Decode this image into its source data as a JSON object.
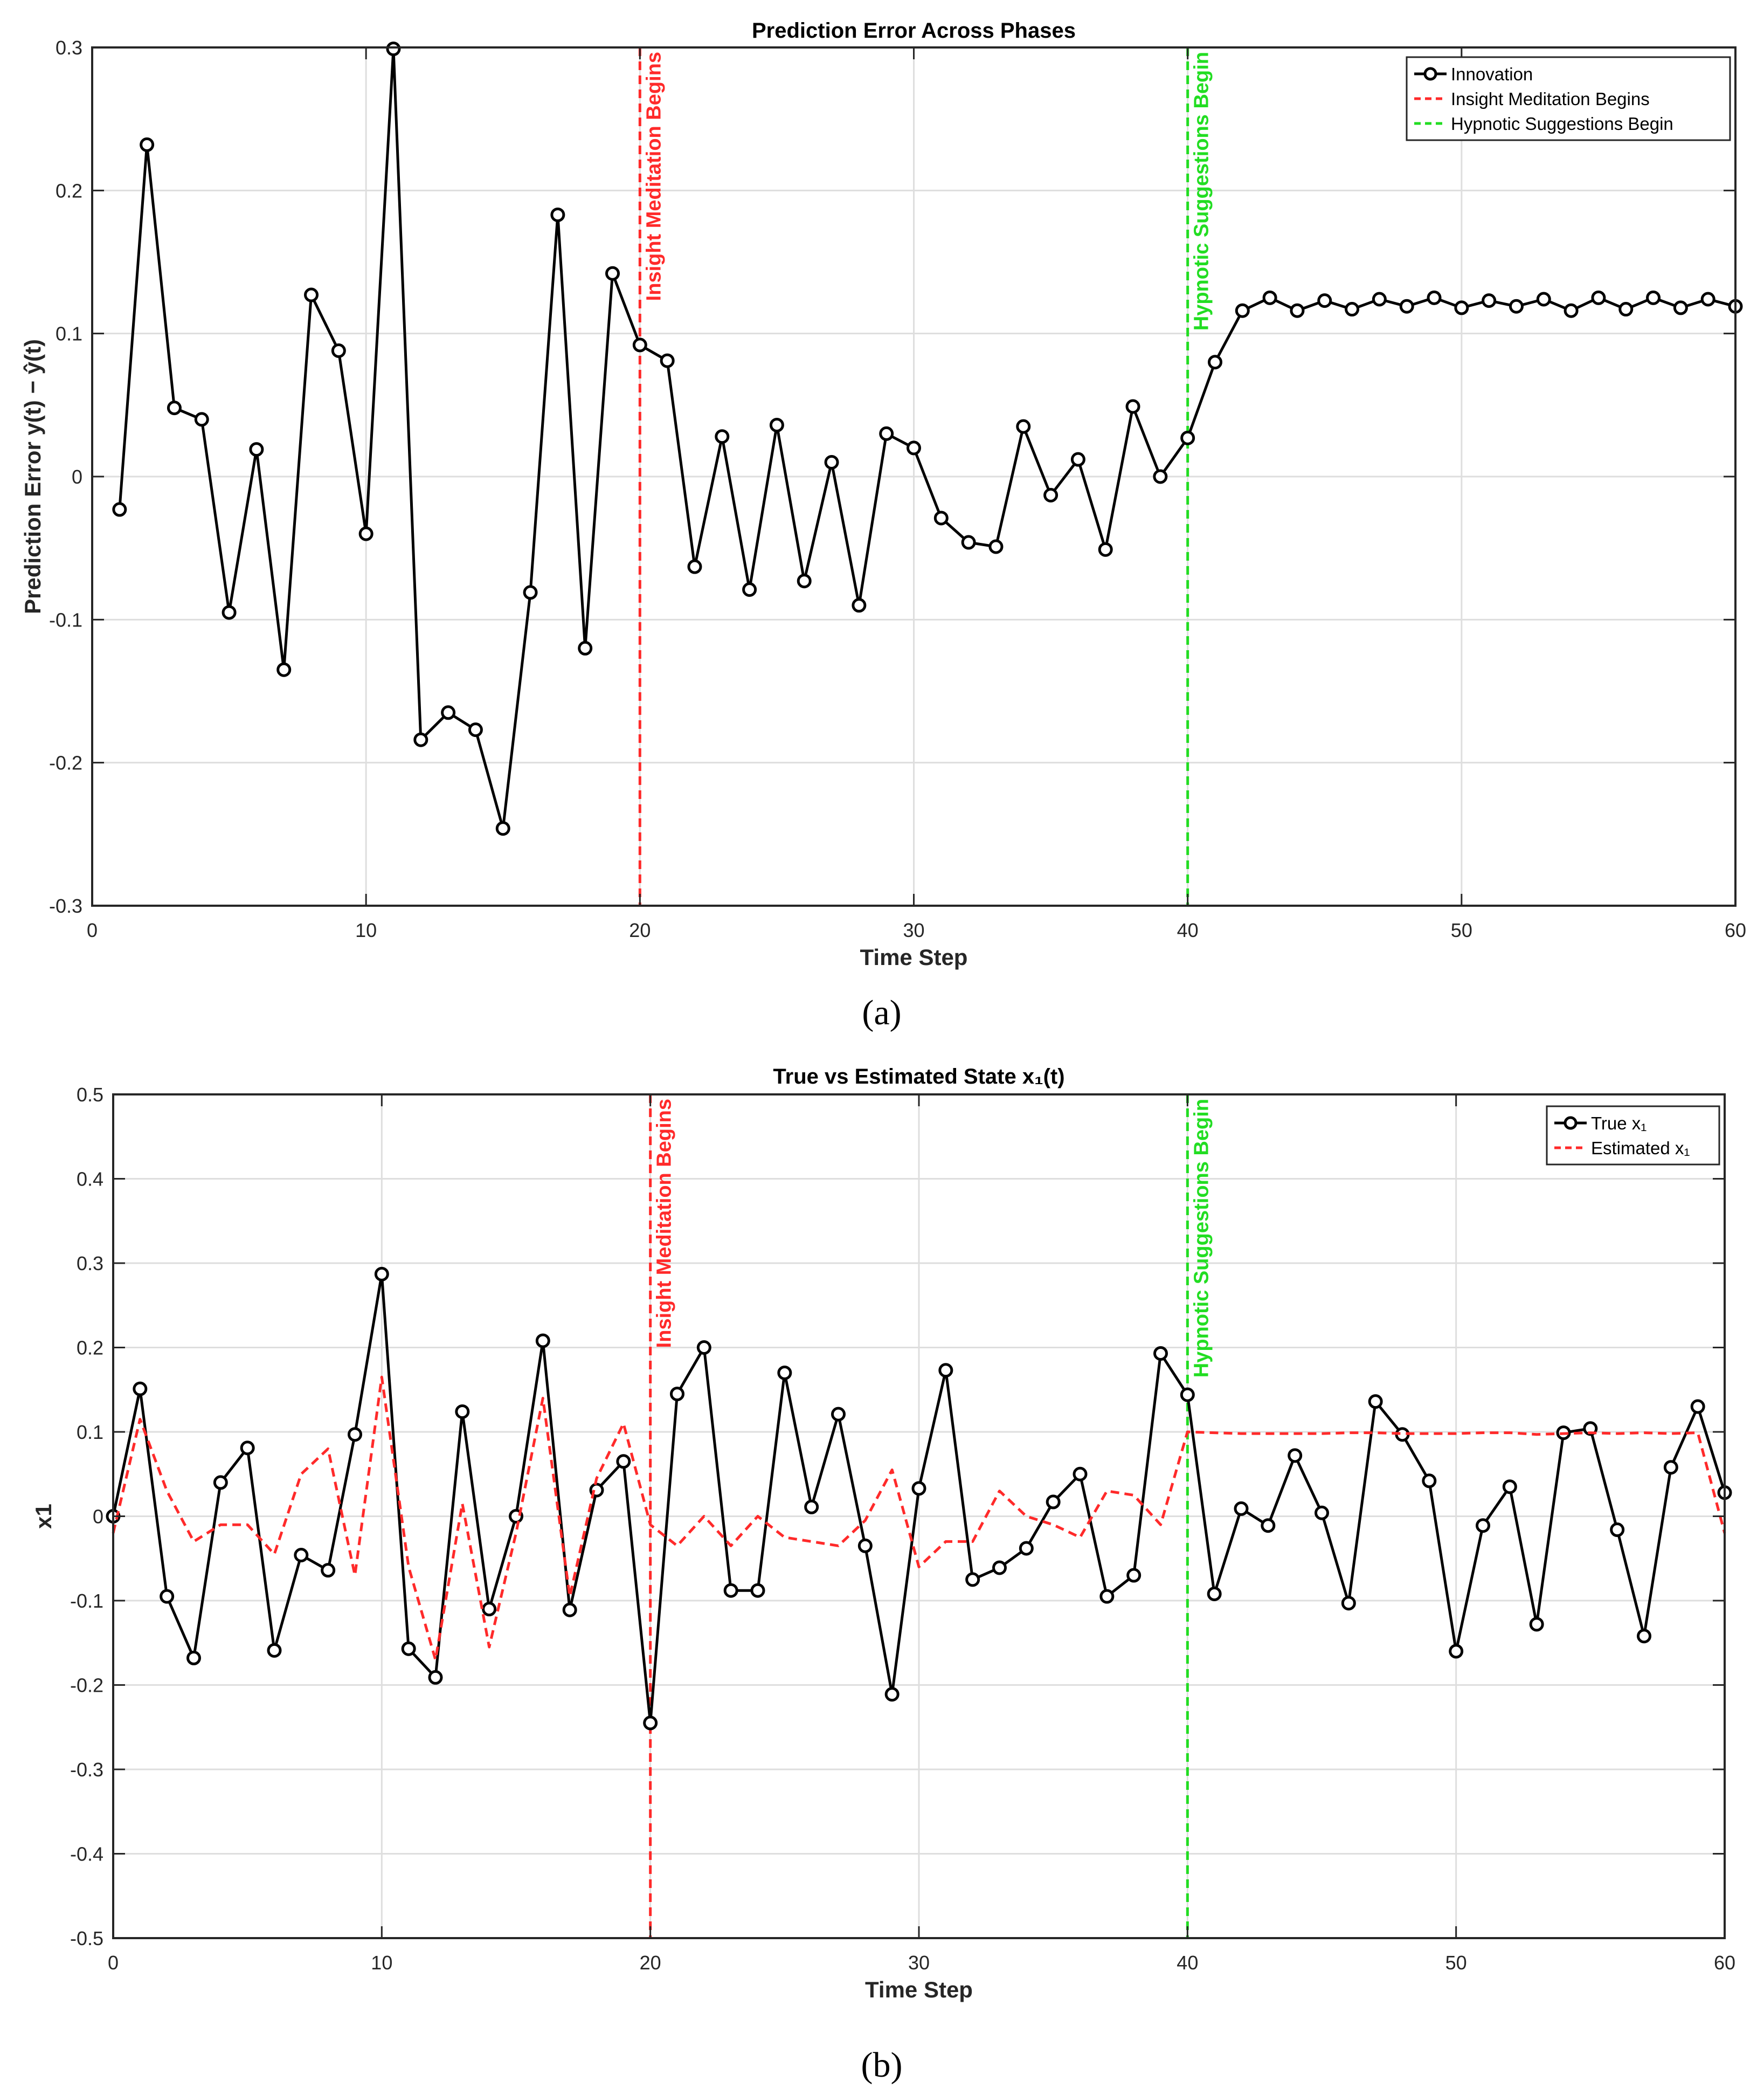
{
  "figure": {
    "caption_a": "(a)",
    "caption_b": "(b)"
  },
  "chart_data": [
    {
      "type": "line",
      "title": "Prediction Error Across Phases",
      "xlabel": "Time Step",
      "ylabel": "Prediction Error y(t) − ŷ(t)",
      "xlim": [
        0,
        60
      ],
      "ylim": [
        -0.3,
        0.3
      ],
      "xticks": [
        0,
        10,
        20,
        30,
        40,
        50,
        60
      ],
      "yticks": [
        -0.3,
        -0.2,
        -0.1,
        0,
        0.1,
        0.2,
        0.3
      ],
      "xtick_labels": [
        "0",
        "10",
        "20",
        "30",
        "40",
        "50",
        "60"
      ],
      "ytick_labels": [
        "-0.3",
        "-0.2",
        "-0.1",
        "0",
        "0.1",
        "0.2",
        "0.3"
      ],
      "grid": true,
      "legend_position": "top-right",
      "colors": {
        "innovation": "#000000",
        "insight": "#ff2a2a",
        "hypnotic": "#22dd22"
      },
      "series": [
        {
          "name": "Innovation",
          "style": "line-marker",
          "x": [
            1,
            2,
            3,
            4,
            5,
            6,
            7,
            8,
            9,
            10,
            11,
            12,
            13,
            14,
            15,
            16,
            17,
            18,
            19,
            20,
            21,
            22,
            23,
            24,
            25,
            26,
            27,
            28,
            29,
            30,
            31,
            32,
            33,
            34,
            35,
            36,
            37,
            38,
            39,
            40,
            41,
            42,
            43,
            44,
            45,
            46,
            47,
            48,
            49,
            50,
            51,
            52,
            53,
            54,
            55,
            56,
            57,
            58,
            59,
            60
          ],
          "values": [
            -0.023,
            0.232,
            0.048,
            0.04,
            -0.095,
            0.019,
            -0.135,
            0.127,
            0.088,
            -0.04,
            0.299,
            -0.184,
            -0.165,
            -0.177,
            -0.246,
            -0.081,
            0.183,
            -0.12,
            0.142,
            0.092,
            0.081,
            -0.063,
            0.028,
            -0.079,
            0.036,
            -0.073,
            0.01,
            -0.09,
            0.03,
            0.02,
            -0.029,
            -0.046,
            -0.049,
            0.035,
            -0.013,
            0.012,
            -0.051,
            0.049,
            0.0,
            0.027,
            0.08,
            0.116,
            0.125,
            0.116,
            0.123,
            0.117,
            0.124,
            0.119,
            0.125,
            0.118,
            0.123,
            0.119,
            0.124,
            0.116,
            0.125,
            0.117,
            0.125,
            0.118,
            0.124,
            0.119
          ]
        }
      ],
      "vlines": [
        {
          "name": "Insight Meditation Begins",
          "x": 20,
          "label": "Insight Meditation Begins",
          "color": "#ff2a2a"
        },
        {
          "name": "Hypnotic Suggestions Begin",
          "x": 40,
          "label": "Hypnotic Suggestions Begin",
          "color": "#22dd22"
        }
      ],
      "legend": [
        "Innovation",
        "Insight Meditation Begins",
        "Hypnotic Suggestions Begin"
      ]
    },
    {
      "type": "line",
      "title": "True vs Estimated State x₁(t)",
      "xlabel": "Time Step",
      "ylabel": "x1",
      "xlim": [
        0,
        60
      ],
      "ylim": [
        -0.5,
        0.5
      ],
      "xticks": [
        0,
        10,
        20,
        30,
        40,
        50,
        60
      ],
      "yticks": [
        -0.5,
        -0.4,
        -0.3,
        -0.2,
        -0.1,
        0,
        0.1,
        0.2,
        0.3,
        0.4,
        0.5
      ],
      "xtick_labels": [
        "0",
        "10",
        "20",
        "30",
        "40",
        "50",
        "60"
      ],
      "ytick_labels": [
        "-0.5",
        "-0.4",
        "-0.3",
        "-0.2",
        "-0.1",
        "0",
        "0.1",
        "0.2",
        "0.3",
        "0.4",
        "0.5"
      ],
      "grid": true,
      "legend_position": "top-right",
      "colors": {
        "true": "#000000",
        "estimated": "#ff2a2a",
        "insight": "#ff2a2a",
        "hypnotic": "#22dd22"
      },
      "series": [
        {
          "name": "True x₁",
          "style": "line-marker",
          "x": [
            0,
            1,
            2,
            3,
            4,
            5,
            6,
            7,
            8,
            9,
            10,
            11,
            12,
            13,
            14,
            15,
            16,
            17,
            18,
            19,
            20,
            21,
            22,
            23,
            24,
            25,
            26,
            27,
            28,
            29,
            30,
            31,
            32,
            33,
            34,
            35,
            36,
            37,
            38,
            39,
            40,
            41,
            42,
            43,
            44,
            45,
            46,
            47,
            48,
            49,
            50,
            51,
            52,
            53,
            54,
            55,
            56,
            57,
            58,
            59,
            60
          ],
          "values": [
            0.0,
            0.151,
            -0.095,
            -0.168,
            0.04,
            0.081,
            -0.159,
            -0.046,
            -0.064,
            0.097,
            0.287,
            -0.157,
            -0.191,
            0.124,
            -0.11,
            0.0,
            0.208,
            -0.111,
            0.031,
            0.065,
            -0.245,
            0.145,
            0.2,
            -0.088,
            -0.088,
            0.17,
            0.011,
            0.121,
            -0.035,
            -0.211,
            0.033,
            0.173,
            -0.075,
            -0.061,
            -0.038,
            0.017,
            0.05,
            -0.095,
            -0.07,
            0.193,
            0.144,
            -0.092,
            0.009,
            -0.011,
            0.072,
            0.004,
            -0.103,
            0.136,
            0.097,
            0.042,
            -0.16,
            -0.011,
            0.035,
            -0.128,
            0.099,
            0.104,
            -0.016,
            -0.142,
            0.058,
            0.13,
            0.028
          ]
        },
        {
          "name": "Estimated x₁",
          "style": "dashed",
          "x": [
            0,
            1,
            2,
            3,
            4,
            5,
            6,
            7,
            8,
            9,
            10,
            11,
            12,
            13,
            14,
            15,
            16,
            17,
            18,
            19,
            20,
            21,
            22,
            23,
            24,
            25,
            26,
            27,
            28,
            29,
            30,
            31,
            32,
            33,
            34,
            35,
            36,
            37,
            38,
            39,
            40,
            41,
            42,
            43,
            44,
            45,
            46,
            47,
            48,
            49,
            50,
            51,
            52,
            53,
            54,
            55,
            56,
            57,
            58,
            59,
            60
          ],
          "values": [
            -0.02,
            0.115,
            0.03,
            -0.03,
            -0.01,
            -0.01,
            -0.045,
            0.05,
            0.08,
            -0.07,
            0.165,
            -0.06,
            -0.17,
            0.015,
            -0.155,
            -0.02,
            0.14,
            -0.095,
            0.045,
            0.11,
            -0.01,
            -0.035,
            0.0,
            -0.035,
            0.0,
            -0.025,
            -0.03,
            -0.035,
            -0.005,
            0.055,
            -0.06,
            -0.03,
            -0.03,
            0.03,
            0.0,
            -0.01,
            -0.025,
            0.03,
            0.025,
            -0.01,
            0.1,
            0.099,
            0.098,
            0.098,
            0.098,
            0.098,
            0.099,
            0.099,
            0.098,
            0.098,
            0.098,
            0.099,
            0.099,
            0.097,
            0.098,
            0.099,
            0.098,
            0.099,
            0.098,
            0.099,
            -0.02
          ]
        }
      ],
      "vlines": [
        {
          "name": "Insight Meditation Begins",
          "x": 20,
          "label": "Insight Meditation Begins",
          "color": "#ff2a2a"
        },
        {
          "name": "Hypnotic Suggestions Begin",
          "x": 40,
          "label": "Hypnotic Suggestions Begin",
          "color": "#22dd22"
        }
      ],
      "legend": [
        "True x₁",
        "Estimated x₁"
      ]
    }
  ]
}
